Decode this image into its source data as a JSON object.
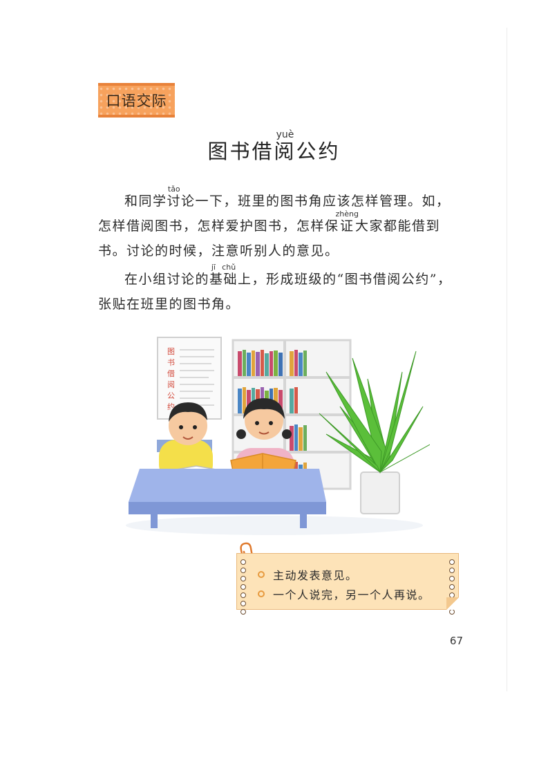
{
  "section_tag": "口语交际",
  "title": {
    "prefix": "图书借",
    "ruby_char": "阅",
    "ruby_pinyin": "yuè",
    "suffix": "公约"
  },
  "paragraph1": {
    "part1": "和同学",
    "ruby1_char": "讨",
    "ruby1_pinyin": "tǎo",
    "part2": "论一下，班里的图书角应该怎样管理。如，怎样借阅图书，怎样爱护图书，怎样保",
    "ruby2_char": "证",
    "ruby2_pinyin": "zhèng",
    "part3": "大家都能借到书。讨论的时候，注意听别人的意见。"
  },
  "paragraph2": {
    "part1": "在小组讨论的",
    "ruby_char": "基础",
    "ruby_pinyin": "jī chǔ",
    "part2": "上，形成班级的“图书借阅公约”，张贴在班里的图书角。"
  },
  "illustration": {
    "poster_text": [
      "图",
      "书",
      "借",
      "阅",
      "公",
      "约"
    ]
  },
  "tips": [
    "主动发表意见。",
    "一个人说完，另一个人再说。"
  ],
  "page_number": "67",
  "colors": {
    "tag_orange": "#f7a25d",
    "note_bg": "#fde3b8",
    "bullet": "#e79a3e"
  }
}
